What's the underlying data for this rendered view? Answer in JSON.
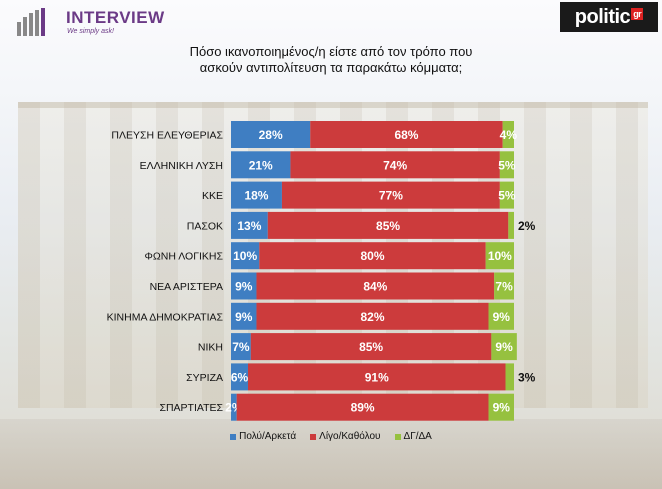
{
  "logos": {
    "left_title": "INTERVIEW",
    "left_tagline": "We simply ask!",
    "right_main": "politic",
    "right_suffix": "gr"
  },
  "colors": {
    "satisfied": "#3f7ec2",
    "dissatisfied": "#cc3b3c",
    "dk": "#96c13f"
  },
  "chart_data": {
    "type": "bar",
    "orientation": "horizontal",
    "stacked": true,
    "title_lines": [
      "Πόσο ικανοποιημένος/η είστε από τον τρόπο που",
      "ασκούν αντιπολίτευση τα παρακάτω κόμματα;"
    ],
    "categories": [
      "ΠΛΕΥΣΗ ΕΛΕΥΘΕΡΙΑΣ",
      "ΕΛΛΗΝΙΚΗ ΛΥΣΗ",
      "ΚΚΕ",
      "ΠΑΣΟΚ",
      "ΦΩΝΗ ΛΟΓΙΚΗΣ",
      "ΝΕΑ ΑΡΙΣΤΕΡΑ",
      "ΚΙΝΗΜΑ ΔΗΜΟΚΡΑΤΙΑΣ",
      "ΝΙΚΗ",
      "ΣΥΡΙΖΑ",
      "ΣΠΑΡΤΙΑΤΕΣ"
    ],
    "series": [
      {
        "name": "Πολύ/Αρκετά",
        "values": [
          28,
          21,
          18,
          13,
          10,
          9,
          9,
          7,
          6,
          2
        ]
      },
      {
        "name": "Λίγο/Καθόλου",
        "values": [
          68,
          74,
          77,
          85,
          80,
          84,
          82,
          85,
          91,
          89
        ]
      },
      {
        "name": "ΔΓ/ΔΑ",
        "values": [
          4,
          5,
          5,
          2,
          10,
          7,
          9,
          9,
          3,
          9
        ]
      }
    ],
    "value_suffix": "%",
    "xlim": [
      0,
      100
    ],
    "legend_position": "bottom",
    "grid": false
  }
}
